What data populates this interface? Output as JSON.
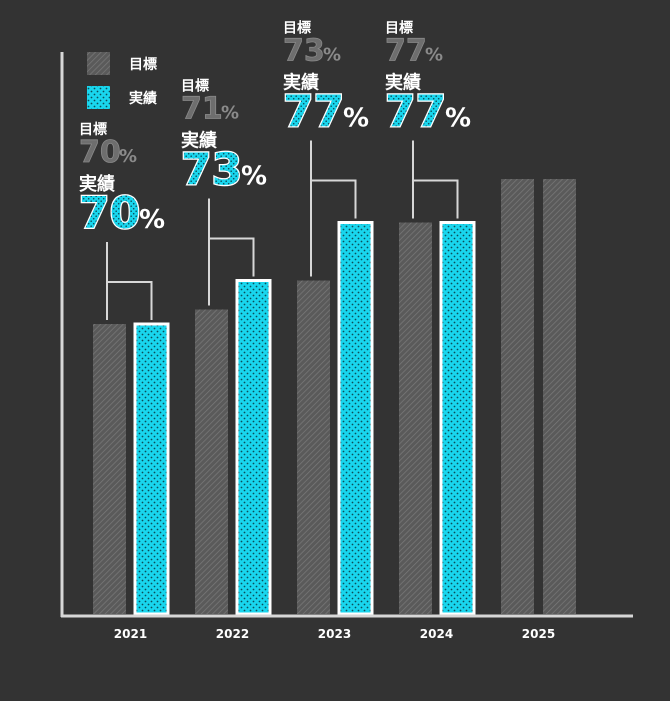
{
  "colors": {
    "background": "#333333",
    "target": "#5f5f5f",
    "actual": "#19d6ee",
    "axis": "#d7d7d7",
    "text_white": "#ffffff",
    "text_gray": "#8f8f8f"
  },
  "legend": {
    "target_label": "目標",
    "actual_label": "実績"
  },
  "chart_data": {
    "type": "bar",
    "categories": [
      "2021",
      "2022",
      "2023",
      "2024",
      "2025"
    ],
    "series": [
      {
        "name": "目標",
        "values": [
          70,
          71,
          73,
          77,
          80
        ]
      },
      {
        "name": "実績",
        "values": [
          70,
          73,
          77,
          77,
          null
        ]
      }
    ],
    "ylim": [
      50,
      82
    ],
    "grid": false,
    "legend_position": "top-left",
    "annotations": [
      {
        "category": "2021",
        "target_label": "目標",
        "target_value": "70",
        "actual_label": "実績",
        "actual_value": "70",
        "unit": "%"
      },
      {
        "category": "2022",
        "target_label": "目標",
        "target_value": "71",
        "actual_label": "実績",
        "actual_value": "73",
        "unit": "%"
      },
      {
        "category": "2023",
        "target_label": "目標",
        "target_value": "73",
        "actual_label": "実績",
        "actual_value": "77",
        "unit": "%"
      },
      {
        "category": "2024",
        "target_label": "目標",
        "target_value": "77",
        "actual_label": "実績",
        "actual_value": "77",
        "unit": "%"
      }
    ]
  }
}
